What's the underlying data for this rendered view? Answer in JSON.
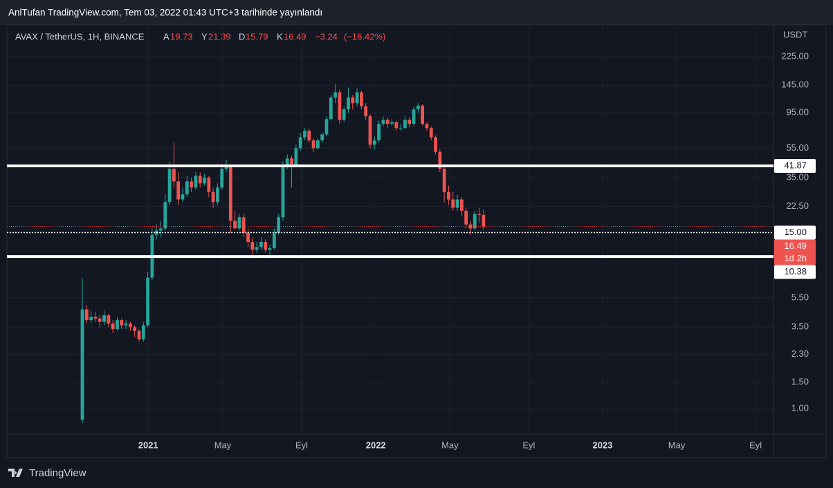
{
  "header": "AnlTufan TradingView.com, Tem 03, 2022 01:43 UTC+3 tarihinde yayınlandı",
  "footer": "TradingView",
  "chart_data": {
    "type": "candlestick",
    "symbol": "AVAX / TetherUS, 1H, BINANCE",
    "open_label": "A",
    "high_label": "Y",
    "low_label": "D",
    "close_label": "K",
    "change": {
      "value": -3.24,
      "label": "−3.24"
    },
    "change_pct": {
      "value": -16.42,
      "label": "(−16.42%)"
    },
    "unit": "USDT",
    "log_scale": true,
    "grid": true,
    "up_color": "#26a69a",
    "down_color": "#ef5350",
    "open": [
      0.84,
      4.6,
      3.9,
      4.1,
      4.0,
      3.8,
      4.2,
      3.7,
      3.4,
      3.9,
      3.6,
      3.7,
      3.5,
      3.3,
      2.9,
      3.6,
      7.5,
      14.5,
      15.5,
      16,
      24,
      40,
      33,
      25,
      27,
      33,
      30,
      36,
      32,
      35,
      28,
      24,
      30,
      40,
      42,
      18,
      16,
      19,
      15,
      13,
      11.5,
      12,
      13,
      11.5,
      11.8,
      15,
      19,
      42,
      47,
      42,
      55,
      65,
      72,
      62,
      55,
      62,
      68,
      86,
      120,
      130,
      85,
      100,
      120,
      110,
      130,
      105,
      90,
      58,
      62,
      80,
      85,
      80,
      82,
      75,
      75,
      85,
      80,
      100,
      106,
      80,
      75,
      65,
      52,
      40,
      28,
      25,
      22,
      25,
      21,
      17,
      16,
      20,
      19.73
    ],
    "high": [
      7.4,
      4.9,
      4.5,
      4.4,
      4.2,
      4.5,
      4.3,
      3.9,
      4.1,
      4.0,
      3.9,
      3.8,
      3.6,
      3.4,
      3.8,
      8.2,
      16,
      17,
      18,
      27,
      45,
      60,
      38,
      30,
      36,
      35,
      38,
      38,
      37,
      36,
      30,
      32,
      43,
      46,
      43,
      21,
      20,
      20,
      16,
      14,
      13,
      14,
      13.5,
      12.5,
      16,
      20,
      45,
      50,
      49,
      58,
      70,
      75,
      74,
      64,
      64,
      70,
      90,
      125,
      148,
      135,
      105,
      140,
      125,
      138,
      133,
      110,
      93,
      66,
      84,
      90,
      88,
      86,
      84,
      80,
      90,
      88,
      104,
      110,
      108,
      82,
      77,
      67,
      54,
      42,
      31,
      28,
      27,
      26,
      22,
      18,
      21,
      22,
      21.39
    ],
    "low": [
      0.8,
      3.7,
      3.7,
      3.8,
      3.5,
      3.6,
      3.5,
      3.2,
      3.3,
      3.4,
      3.4,
      3.3,
      3.0,
      2.8,
      2.8,
      3.5,
      7.2,
      13.5,
      14,
      15.5,
      23,
      30,
      23,
      24,
      26,
      28,
      29,
      30,
      31,
      26,
      22,
      23,
      29,
      38,
      15,
      16,
      15.5,
      14,
      12,
      10.5,
      11,
      11.5,
      11,
      10.5,
      11.5,
      14.5,
      18,
      40,
      30,
      41,
      53,
      62,
      60,
      52,
      54,
      60,
      66,
      84,
      110,
      80,
      82,
      95,
      100,
      105,
      100,
      85,
      55,
      54,
      60,
      77,
      75,
      78,
      72,
      72,
      74,
      76,
      78,
      95,
      78,
      72,
      62,
      50,
      38,
      24,
      23,
      21,
      21,
      19.5,
      16,
      14.5,
      15.5,
      17.5,
      15.79
    ],
    "close": [
      4.6,
      3.9,
      4.1,
      4.0,
      3.8,
      4.2,
      3.7,
      3.4,
      3.9,
      3.6,
      3.7,
      3.5,
      3.3,
      2.9,
      3.6,
      7.5,
      14.5,
      15.5,
      16,
      24,
      40,
      33,
      25,
      27,
      33,
      30,
      36,
      32,
      35,
      28,
      24,
      30,
      40,
      42,
      18,
      16,
      19,
      15,
      13,
      11.5,
      12,
      13,
      11.5,
      11.8,
      15,
      19,
      42,
      47,
      42,
      55,
      65,
      72,
      62,
      55,
      62,
      68,
      86,
      120,
      130,
      85,
      100,
      120,
      110,
      130,
      105,
      90,
      58,
      62,
      80,
      85,
      80,
      82,
      75,
      75,
      85,
      80,
      100,
      106,
      80,
      75,
      65,
      52,
      40,
      28,
      25,
      22,
      25,
      21,
      17,
      16,
      20,
      19.73,
      16.49
    ],
    "countdown": "1d 2h",
    "hlines": [
      41.87,
      10.38
    ],
    "marker_line": {
      "value": 15,
      "label": "15.00"
    },
    "ylim": [
      0.675,
      367
    ],
    "yticks": [
      {
        "value": 1,
        "label": "1.00"
      },
      {
        "value": 1.5,
        "label": "1.50"
      },
      {
        "value": 2.3,
        "label": "2.30"
      },
      {
        "value": 3.5,
        "label": "3.50"
      },
      {
        "value": 5.5,
        "label": "5.50"
      },
      {
        "value": 22.5,
        "label": "22.50"
      },
      {
        "value": 35,
        "label": "35.00"
      },
      {
        "value": 55,
        "label": "55.00"
      },
      {
        "value": 95,
        "label": "95.00"
      },
      {
        "value": 145,
        "label": "145.00"
      },
      {
        "value": 225,
        "label": "225.00"
      }
    ],
    "xlim": [
      -17.3,
      158.5
    ],
    "xticks": [
      {
        "value": 15.1,
        "label": "2021"
      },
      {
        "value": 32.2,
        "label": "May"
      },
      {
        "value": 50.3,
        "label": "Eyl"
      },
      {
        "value": 67.3,
        "label": "2022"
      },
      {
        "value": 84.3,
        "label": "May"
      },
      {
        "value": 102.4,
        "label": "Eyl"
      },
      {
        "value": 119.3,
        "label": "2023"
      },
      {
        "value": 136.3,
        "label": "May"
      },
      {
        "value": 154.4,
        "label": "Eyl"
      }
    ]
  }
}
